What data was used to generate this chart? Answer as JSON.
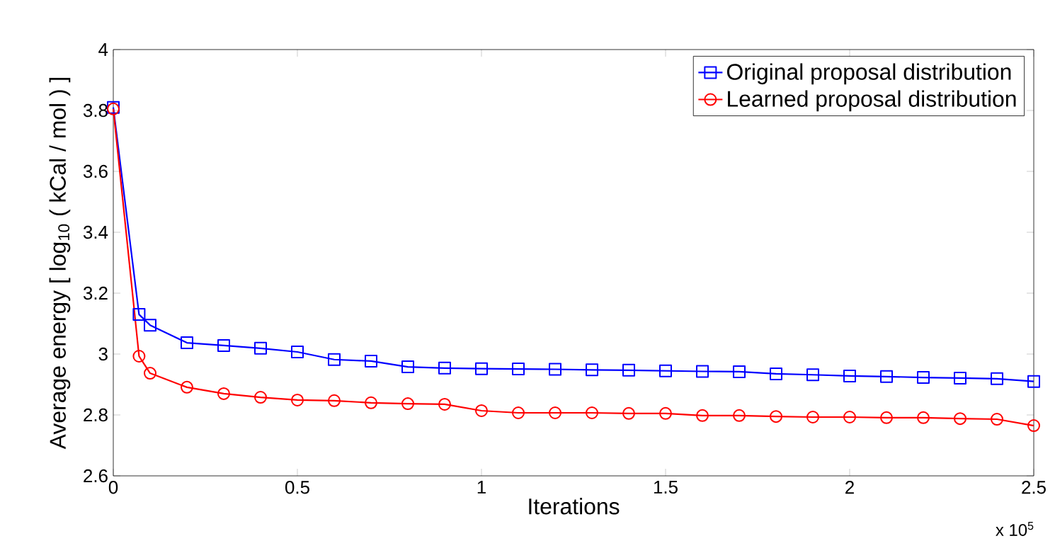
{
  "chart_data": {
    "type": "line",
    "xlabel": "Iterations",
    "ylabel": "Average energy [ log$_{10}$ ( kCal / mol ) ]",
    "annotations": [
      "x 10$^{5}$"
    ],
    "x": [
      0,
      0.07,
      0.1,
      0.2,
      0.3,
      0.4,
      0.5,
      0.6,
      0.7,
      0.8,
      0.9,
      1.0,
      1.1,
      1.2,
      1.3,
      1.4,
      1.5,
      1.6,
      1.7,
      1.8,
      1.9,
      2.0,
      2.1,
      2.2,
      2.3,
      2.4,
      2.5
    ],
    "series": [
      {
        "name": "Original proposal distribution",
        "color": "#0000ff",
        "marker": "square",
        "values": [
          3.81,
          3.13,
          3.095,
          3.037,
          3.028,
          3.019,
          3.007,
          2.982,
          2.977,
          2.958,
          2.954,
          2.952,
          2.951,
          2.95,
          2.948,
          2.947,
          2.945,
          2.943,
          2.942,
          2.935,
          2.932,
          2.928,
          2.926,
          2.923,
          2.921,
          2.919,
          2.91
        ]
      },
      {
        "name": "Learned proposal distribution",
        "color": "#ff0000",
        "marker": "circle",
        "values": [
          3.805,
          2.993,
          2.937,
          2.891,
          2.87,
          2.858,
          2.849,
          2.847,
          2.84,
          2.837,
          2.835,
          2.814,
          2.807,
          2.807,
          2.807,
          2.805,
          2.805,
          2.798,
          2.798,
          2.795,
          2.793,
          2.793,
          2.791,
          2.791,
          2.788,
          2.786,
          2.765
        ]
      }
    ],
    "xlim": [
      0,
      2.5
    ],
    "xticks": [
      0,
      0.5,
      1,
      1.5,
      2,
      2.5
    ],
    "ylim": [
      2.6,
      4
    ],
    "yticks": [
      2.6,
      2.8,
      3,
      3.2,
      3.4,
      3.6,
      3.8,
      4
    ],
    "grid": false,
    "legend": "top right",
    "line_style": "solid"
  }
}
